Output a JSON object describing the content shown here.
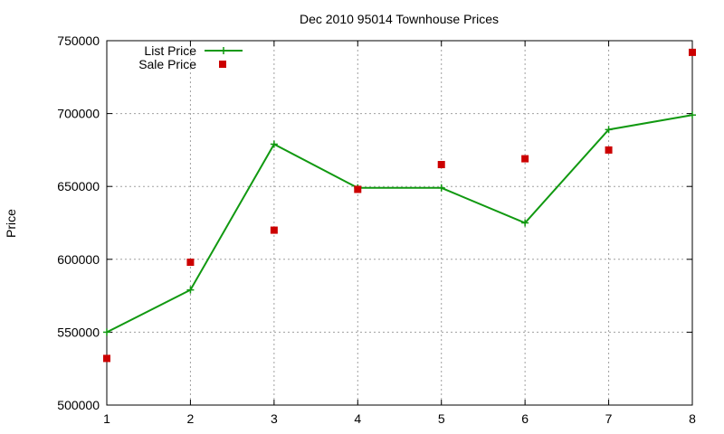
{
  "chart_data": {
    "type": "line",
    "title": "Dec 2010 95014 Townhouse Prices",
    "xlabel": "",
    "ylabel": "Price",
    "xlim": [
      1,
      8
    ],
    "ylim": [
      500000,
      750000
    ],
    "x_ticks": [
      1,
      2,
      3,
      4,
      5,
      6,
      7,
      8
    ],
    "y_ticks": [
      500000,
      550000,
      600000,
      650000,
      700000,
      750000
    ],
    "grid": true,
    "legend_position": "top-left",
    "series": [
      {
        "name": "List Price",
        "style": "line with plus markers",
        "color": "#119911",
        "x": [
          1,
          2,
          3,
          4,
          5,
          6,
          7,
          8
        ],
        "y": [
          550000,
          579000,
          679000,
          649000,
          649000,
          625000,
          689000,
          699000
        ]
      },
      {
        "name": "Sale Price",
        "style": "square markers",
        "color": "#cc0000",
        "x": [
          1,
          2,
          3,
          4,
          5,
          6,
          7,
          8
        ],
        "y": [
          532000,
          598000,
          620000,
          648000,
          665000,
          669000,
          675000,
          742000
        ]
      }
    ]
  }
}
